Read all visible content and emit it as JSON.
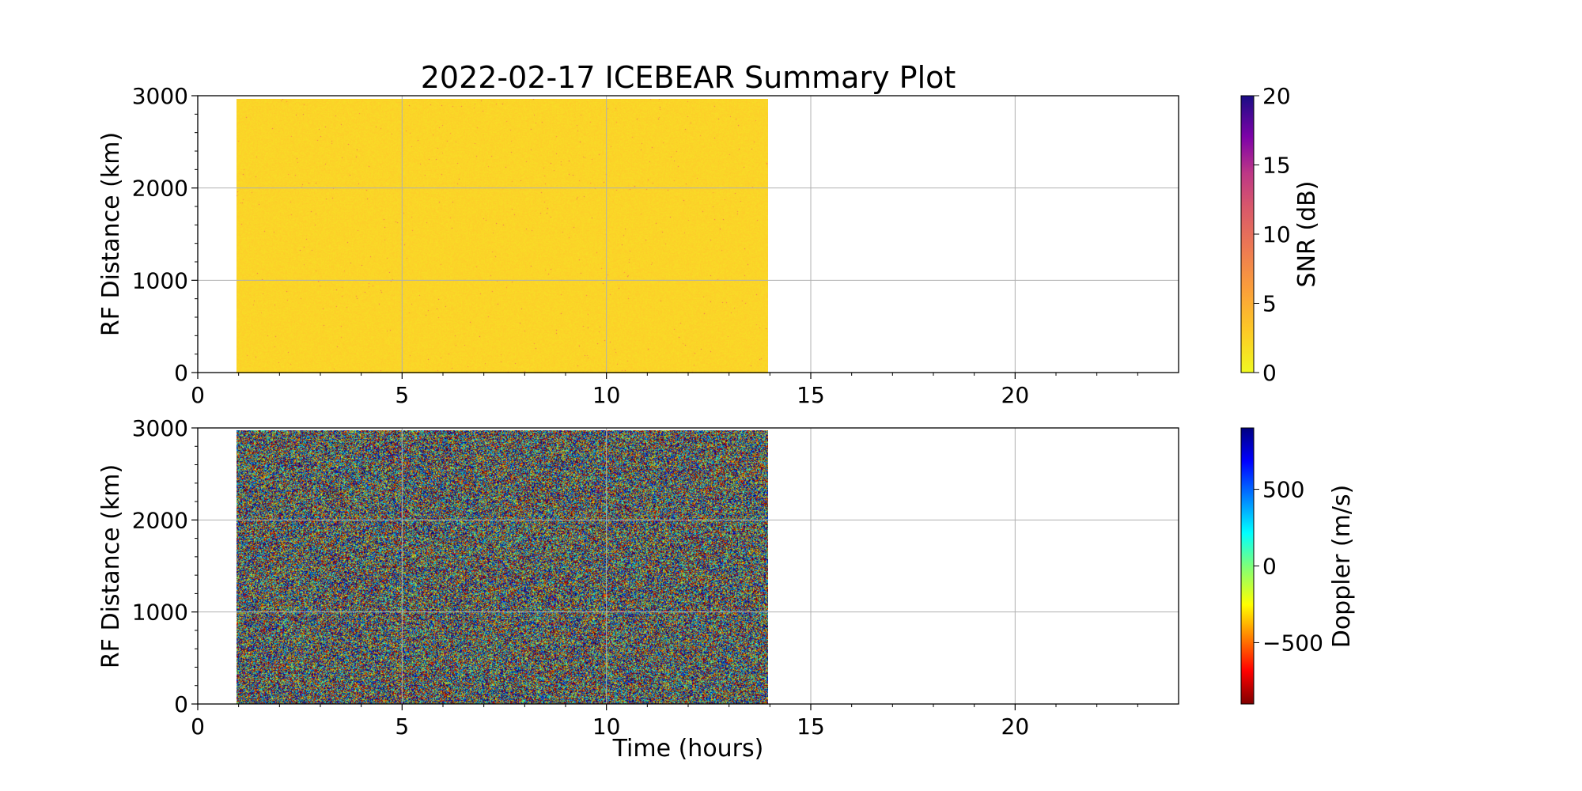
{
  "chart_data": [
    {
      "type": "heatmap",
      "title": "2022-02-17 ICEBEAR Summary Plot",
      "xlabel": "",
      "ylabel": "RF Distance (km)",
      "xlim": [
        0,
        24
      ],
      "ylim": [
        0,
        3000
      ],
      "xticks": [
        "0",
        "5",
        "10",
        "15",
        "20"
      ],
      "yticks": [
        "0",
        "1000",
        "2000",
        "3000"
      ],
      "grid": true,
      "data_extent": {
        "x": [
          0.95,
          13.95
        ],
        "y": [
          0,
          2970
        ]
      },
      "dominant_value": 0,
      "colorbar": {
        "label": "SNR (dB)",
        "colormap": "plasma_r",
        "range": [
          0,
          20
        ],
        "ticks": [
          "0",
          "5",
          "10",
          "15",
          "20"
        ]
      }
    },
    {
      "type": "heatmap",
      "title": "",
      "xlabel": "Time (hours)",
      "ylabel": "RF Distance (km)",
      "xlim": [
        0,
        24
      ],
      "ylim": [
        0,
        3000
      ],
      "xticks": [
        "0",
        "5",
        "10",
        "15",
        "20"
      ],
      "yticks": [
        "0",
        "1000",
        "2000",
        "3000"
      ],
      "grid": true,
      "data_extent": {
        "x": [
          0.95,
          13.95
        ],
        "y": [
          0,
          2970
        ]
      },
      "colorbar": {
        "label": "Doppler (m/s)",
        "colormap": "jet_r",
        "range": [
          -900,
          900
        ],
        "ticks": [
          "−500",
          "0",
          "500"
        ]
      }
    }
  ]
}
